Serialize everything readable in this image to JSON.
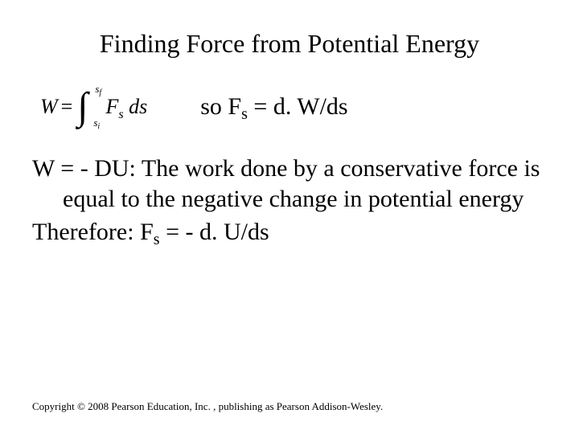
{
  "title": "Finding Force from Potential Energy",
  "equation": {
    "lhs_W": "W",
    "equals": "=",
    "int_upper_s": "s",
    "int_upper_sub": "f",
    "int_lower_s": "s",
    "int_lower_sub": "i",
    "integrand_F": "F",
    "integrand_sub": "s",
    "integrand_ds": " ds",
    "rhs_so": "so F",
    "rhs_sub": "s",
    "rhs_rest": " = d. W/ds"
  },
  "body": {
    "line1_pre": "W = - ",
    "line1_delta": "D",
    "line1_post": "U:  The work done by a conservative force is equal to the negative change in potential energy",
    "line2_pre": "Therefore:  F",
    "line2_sub": "s",
    "line2_post": " = - d. U/ds"
  },
  "copyright": "Copyright © 2008 Pearson Education, Inc. , publishing as Pearson Addison-Wesley."
}
